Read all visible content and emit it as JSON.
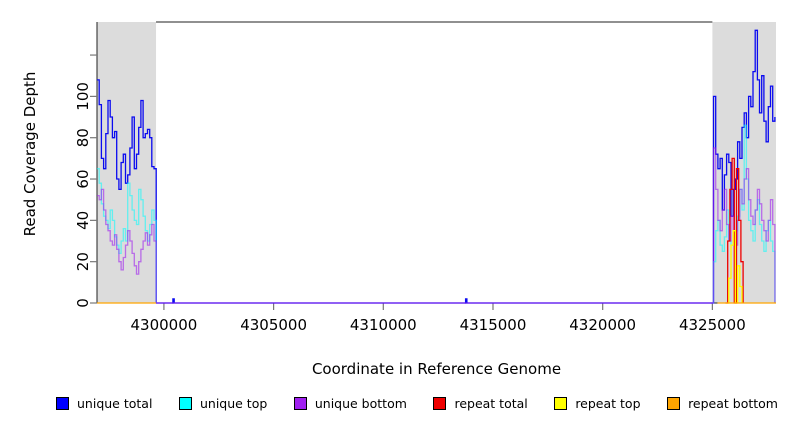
{
  "figure": {
    "xlabel": "Coordinate in Reference Genome",
    "ylabel": "Read Coverage Depth",
    "background_color": "#ffffff",
    "shading_color": "#dcdcdc",
    "axis_color": "#222222",
    "tick_color": "#777777"
  },
  "chart_data": {
    "type": "line",
    "step_interpolation": true,
    "title": "",
    "xlabel": "Coordinate in Reference Genome",
    "ylabel": "Read Coverage Depth",
    "xlim": [
      4296950,
      4327900
    ],
    "ylim": [
      0,
      136
    ],
    "xticks": [
      4300000,
      4305000,
      4310000,
      4315000,
      4320000,
      4325000
    ],
    "yticks": [
      0,
      20,
      40,
      60,
      80,
      100,
      120
    ],
    "ytick_labels": [
      "0",
      "20",
      "40",
      "60",
      "80",
      "100",
      ""
    ],
    "grid": false,
    "legend_position": "bottom",
    "shaded_regions": [
      {
        "label": "left-repeat-region",
        "from": 4296950,
        "to": 4299640,
        "color": "#dcdcdc"
      },
      {
        "label": "right-repeat-region",
        "from": 4325000,
        "to": 4327900,
        "color": "#dcdcdc"
      }
    ],
    "series": [
      {
        "name": "unique total",
        "color": "#0a0af0",
        "legend_color": "#0000ff",
        "opacity": 1,
        "segments": [
          {
            "x0": 4296950,
            "step": 100,
            "values": [
              108,
              96,
              70,
              65,
              82,
              98,
              90,
              80,
              83,
              60,
              55,
              68,
              72,
              58,
              62,
              75,
              90,
              65,
              72,
              85,
              98,
              80,
              82,
              84,
              80,
              66,
              65,
              0
            ]
          },
          {
            "x0": 4299650,
            "step": 25370,
            "values": [
              0,
              0
            ]
          },
          {
            "x0": 4300380,
            "step": 30,
            "values": [
              0,
              2,
              2,
              0
            ]
          },
          {
            "x0": 4313720,
            "step": 30,
            "values": [
              0,
              2,
              2,
              0
            ]
          },
          {
            "x0": 4324950,
            "step": 100,
            "values": [
              0,
              100,
              72,
              65,
              70,
              45,
              62,
              72,
              68,
              42,
              55,
              60,
              78,
              70,
              85,
              92,
              80,
              100,
              95,
              112,
              132,
              108,
              92,
              110,
              88,
              78,
              95,
              105,
              88,
              90
            ]
          }
        ]
      },
      {
        "name": "unique top",
        "color": "#00ffff",
        "legend_color": "#00ffff",
        "opacity": 0.55,
        "segments": [
          {
            "x0": 4296950,
            "step": 100,
            "values": [
              65,
              58,
              48,
              42,
              40,
              36,
              45,
              40,
              32,
              28,
              24,
              30,
              36,
              30,
              58,
              52,
              45,
              40,
              38,
              55,
              50,
              42,
              35,
              30,
              38,
              45,
              40,
              0
            ]
          },
          {
            "x0": 4324950,
            "step": 100,
            "values": [
              0,
              20,
              35,
              40,
              28,
              25,
              32,
              45,
              30,
              28,
              30,
              35,
              42,
              55,
              45,
              86,
              60,
              40,
              35,
              30,
              45,
              50,
              38,
              30,
              25,
              35,
              40,
              30,
              25,
              0
            ]
          }
        ]
      },
      {
        "name": "unique bottom",
        "color": "#a020f0",
        "legend_color": "#a020f0",
        "opacity": 0.6,
        "segments": [
          {
            "x0": 4296950,
            "step": 100,
            "values": [
              52,
              50,
              55,
              45,
              38,
              35,
              30,
              28,
              33,
              26,
              20,
              16,
              22,
              28,
              35,
              30,
              24,
              18,
              14,
              20,
              26,
              30,
              34,
              28,
              33,
              38,
              30,
              0
            ]
          },
          {
            "x0": 4299650,
            "step": 25370,
            "values": [
              0,
              0
            ]
          },
          {
            "x0": 4324950,
            "step": 100,
            "values": [
              0,
              75,
              55,
              40,
              35,
              45,
              55,
              38,
              30,
              42,
              35,
              28,
              40,
              55,
              48,
              60,
              65,
              50,
              42,
              38,
              45,
              55,
              48,
              40,
              35,
              30,
              40,
              50,
              38,
              0
            ]
          }
        ]
      },
      {
        "name": "repeat total",
        "color": "#ee0000",
        "legend_color": "#ee0000",
        "opacity": 1,
        "segments": [
          {
            "x0": 4325600,
            "step": 100,
            "values": [
              0,
              30,
              55,
              70,
              0,
              65,
              40,
              20,
              0
            ]
          }
        ]
      },
      {
        "name": "repeat top",
        "color": "#ffff00",
        "legend_color": "#ffff00",
        "opacity": 1,
        "segments": [
          {
            "x0": 4325650,
            "step": 100,
            "values": [
              0,
              12,
              28,
              35,
              0,
              18,
              8,
              0
            ]
          }
        ]
      },
      {
        "name": "repeat bottom",
        "color": "#ffa500",
        "legend_color": "#ffa500",
        "opacity": 1,
        "segments": [
          {
            "x0": 4296950,
            "step": 2690,
            "values": [
              0,
              0
            ]
          },
          {
            "x0": 4325230,
            "step": 2670,
            "values": [
              0,
              0
            ]
          }
        ]
      }
    ]
  }
}
